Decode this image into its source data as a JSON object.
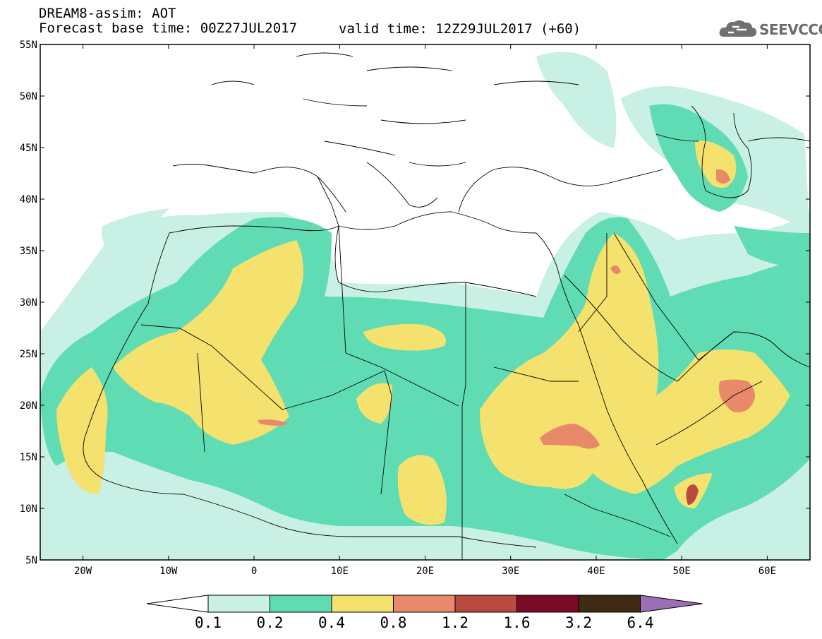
{
  "title": {
    "line1": "DREAM8-assim: AOT",
    "line2": "Forecast base time: 00Z27JUL2017",
    "valid": "valid time: 12Z29JUL2017 (+60)"
  },
  "logo": {
    "text": "SEEVCCC",
    "icon": "cloud-icon"
  },
  "axes": {
    "lat_ticks": [
      {
        "value": 55,
        "label": "55N"
      },
      {
        "value": 50,
        "label": "50N"
      },
      {
        "value": 45,
        "label": "45N"
      },
      {
        "value": 40,
        "label": "40N"
      },
      {
        "value": 35,
        "label": "35N"
      },
      {
        "value": 30,
        "label": "30N"
      },
      {
        "value": 25,
        "label": "25N"
      },
      {
        "value": 20,
        "label": "20N"
      },
      {
        "value": 15,
        "label": "15N"
      },
      {
        "value": 10,
        "label": "10N"
      },
      {
        "value": 5,
        "label": "5N"
      }
    ],
    "lon_ticks": [
      {
        "value": -20,
        "label": "20W"
      },
      {
        "value": -10,
        "label": "10W"
      },
      {
        "value": 0,
        "label": "0"
      },
      {
        "value": 10,
        "label": "10E"
      },
      {
        "value": 20,
        "label": "20E"
      },
      {
        "value": 30,
        "label": "30E"
      },
      {
        "value": 40,
        "label": "40E"
      },
      {
        "value": 50,
        "label": "50E"
      },
      {
        "value": 60,
        "label": "60E"
      }
    ],
    "lon_range": [
      -25,
      65
    ],
    "lat_range": [
      5,
      55
    ]
  },
  "colorbar": {
    "labels": [
      "0.1",
      "0.2",
      "0.4",
      "0.8",
      "1.2",
      "1.6",
      "3.2",
      "6.4"
    ],
    "colors": [
      "#c8f0e4",
      "#5fdcb4",
      "#f5e16e",
      "#e8896a",
      "#b84a42",
      "#7a0a28",
      "#3f2a14",
      "#9c6eb4"
    ]
  }
}
